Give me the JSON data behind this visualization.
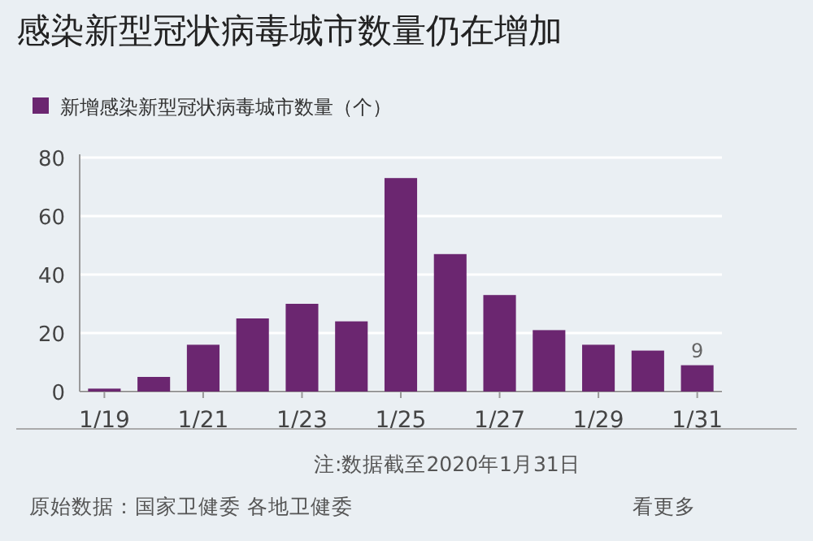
{
  "chart_data": {
    "type": "bar",
    "title": "感染新型冠状病毒城市数量仍在增加",
    "categories": [
      "1/19",
      null,
      "1/21",
      null,
      "1/23",
      null,
      "1/25",
      null,
      "1/27",
      null,
      "1/29",
      null,
      "1/31"
    ],
    "series": [
      {
        "name": "新增感染新型冠状病毒城市数量（个）",
        "color": "#6b2670",
        "values": [
          1,
          5,
          16,
          25,
          30,
          24,
          73,
          47,
          33,
          21,
          16,
          14,
          9
        ],
        "value_labels": [
          null,
          null,
          null,
          null,
          null,
          null,
          null,
          null,
          null,
          null,
          null,
          null,
          "9"
        ]
      }
    ],
    "ylim": [
      0,
      80
    ],
    "yticks": [
      0,
      20,
      40,
      60,
      80
    ],
    "grid": "y",
    "legend": "top left",
    "annotations": [
      "注:数据截至2020年1月31日",
      "原始数据：国家卫健委 各地卫健委",
      "看更多"
    ]
  }
}
